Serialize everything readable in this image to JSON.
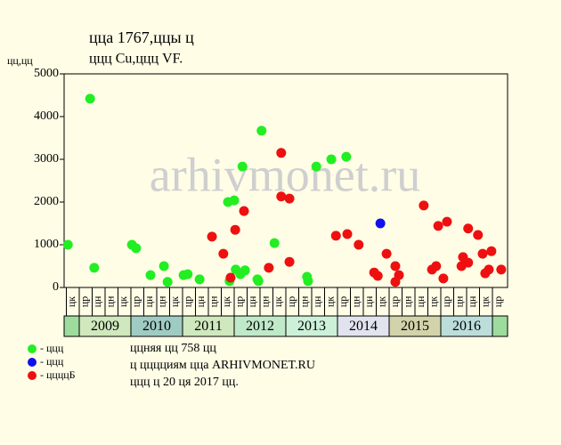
{
  "chart_data": {
    "type": "scatter",
    "title": [
      "ццa 1767,ццы ц",
      "ццц Cu,ццц VF."
    ],
    "y_label": "цц,цц",
    "watermark": "arhivmonet.ru",
    "xlim": [
      2008.707,
      2017.293
    ],
    "ylim": [
      0,
      5000
    ],
    "yticks": [
      0,
      1000,
      2000,
      3000,
      4000,
      5000
    ],
    "xticks": [
      {
        "value": 2008.75,
        "label": "цк"
      },
      {
        "value": 2009.0,
        "label": "цр"
      },
      {
        "value": 2009.25,
        "label": "цн"
      },
      {
        "value": 2009.5,
        "label": "цн"
      },
      {
        "value": 2009.75,
        "label": "цк"
      },
      {
        "value": 2010.0,
        "label": "цр"
      },
      {
        "value": 2010.25,
        "label": "цн"
      },
      {
        "value": 2010.5,
        "label": "цн"
      },
      {
        "value": 2010.75,
        "label": "цк"
      },
      {
        "value": 2011.0,
        "label": "цр"
      },
      {
        "value": 2011.25,
        "label": "цн"
      },
      {
        "value": 2011.5,
        "label": "цн"
      },
      {
        "value": 2011.75,
        "label": "цк"
      },
      {
        "value": 2012.0,
        "label": "цр"
      },
      {
        "value": 2012.25,
        "label": "цн"
      },
      {
        "value": 2012.5,
        "label": "цн"
      },
      {
        "value": 2012.75,
        "label": "цк"
      },
      {
        "value": 2013.0,
        "label": "цр"
      },
      {
        "value": 2013.25,
        "label": "цн"
      },
      {
        "value": 2013.5,
        "label": "цн"
      },
      {
        "value": 2013.75,
        "label": "цк"
      },
      {
        "value": 2014.0,
        "label": "цр"
      },
      {
        "value": 2014.25,
        "label": "цн"
      },
      {
        "value": 2014.5,
        "label": "цн"
      },
      {
        "value": 2014.75,
        "label": "цк"
      },
      {
        "value": 2015.0,
        "label": "цр"
      },
      {
        "value": 2015.25,
        "label": "цн"
      },
      {
        "value": 2015.5,
        "label": "цн"
      },
      {
        "value": 2015.75,
        "label": "цк"
      },
      {
        "value": 2016.0,
        "label": "цр"
      },
      {
        "value": 2016.25,
        "label": "цн"
      },
      {
        "value": 2016.5,
        "label": "цн"
      },
      {
        "value": 2016.75,
        "label": "цк"
      },
      {
        "value": 2017.0,
        "label": "цр"
      }
    ],
    "year_bands": [
      2009,
      2010,
      2011,
      2012,
      2013,
      2014,
      2015,
      2016
    ],
    "year_colors": [
      "#cfe8bd",
      "#9fcbc3",
      "#cfe8bd",
      "#bfe9c9",
      "#cdf0d9",
      "#e1e4ee",
      "#d3d3ab",
      "#bcdedb"
    ],
    "edge_color": "#9edc9e",
    "series": [
      {
        "name": "- ццц",
        "color": "#22ee22",
        "x": [
          2008.78,
          2009.21,
          2009.29,
          2010.02,
          2010.1,
          2010.38,
          2010.64,
          2010.71,
          2011.02,
          2011.1,
          2011.33,
          2011.88,
          2011.91,
          2012.0,
          2012.03,
          2012.12,
          2012.16,
          2012.21,
          2012.45,
          2012.47,
          2012.53,
          2012.78,
          2013.41,
          2013.43,
          2013.59,
          2013.88,
          2014.17
        ],
        "values": [
          1000,
          4420,
          460,
          1000,
          920,
          290,
          500,
          130,
          290,
          310,
          190,
          2000,
          150,
          2040,
          420,
          310,
          2830,
          400,
          190,
          150,
          3670,
          1040,
          250,
          150,
          2830,
          3000,
          3060
        ]
      },
      {
        "name": "- ццц",
        "color": "#1010ee",
        "x": [
          2014.83
        ],
        "values": [
          1500
        ]
      },
      {
        "name": "- ццццБ",
        "color": "#ee1010",
        "x": [
          2011.57,
          2011.79,
          2011.93,
          2012.02,
          2012.19,
          2012.67,
          2012.91,
          2012.91,
          2013.07,
          2013.07,
          2013.97,
          2014.19,
          2014.41,
          2014.71,
          2014.78,
          2014.95,
          2015.12,
          2015.12,
          2015.19,
          2015.67,
          2015.83,
          2015.91,
          2015.95,
          2016.05,
          2016.12,
          2016.4,
          2016.43,
          2016.53,
          2016.53,
          2016.72,
          2016.81,
          2016.86,
          2016.93,
          2016.98,
          2017.17
        ],
        "values": [
          1190,
          790,
          230,
          1350,
          1790,
          460,
          3150,
          2130,
          2080,
          600,
          1210,
          1250,
          1000,
          350,
          270,
          790,
          500,
          130,
          290,
          1920,
          420,
          500,
          1440,
          210,
          1540,
          500,
          710,
          580,
          1380,
          1230,
          790,
          330,
          420,
          850,
          420
        ]
      }
    ],
    "notes": [
      "ццняя цц 758 цц",
      "ц цццциям цца ARHIVMONET.RU",
      "ццц ц 20 ця 2017 цц."
    ]
  }
}
